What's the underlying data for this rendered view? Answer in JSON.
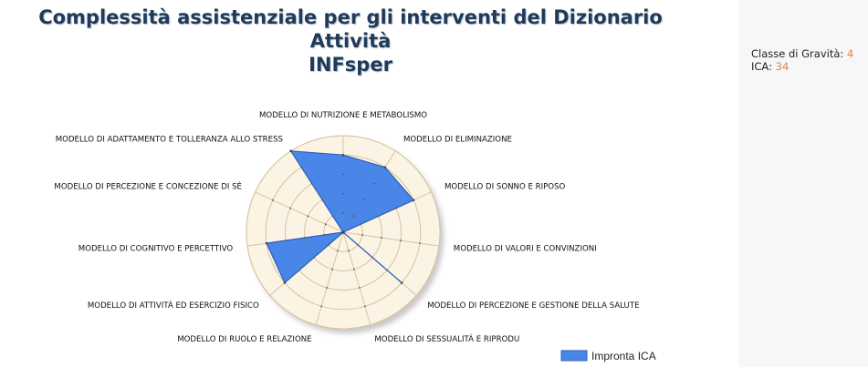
{
  "title_lines": [
    "Complessità assistenziale per gli interventi del Dizionario Attività",
    "INFsper"
  ],
  "info": {
    "gravity_label": "Classe di Gravità:",
    "gravity_value": "4",
    "ica_label": "ICA:",
    "ica_value": "34"
  },
  "colors": {
    "series_fill": "#4a86e8",
    "series_stroke": "#2c5fb8",
    "plot_bg": "#fbf3e3",
    "grid": "#d8c4a0"
  },
  "chart_data": {
    "type": "radar",
    "axes": [
      "MODELLO DI NUTRIZIONE E METABOLISMO",
      "MODELLO DI ELIMINAZIONE",
      "MODELLO DI SONNO E RIPOSO",
      "MODELLO DI VALORI E CONVINZIONI",
      "MODELLO DI PERCEZIONE E GESTIONE DELLA SALUTE",
      "MODELLO DI SESSUALITÀ E  RIPRODU",
      "MODELLO DI RUOLO E RELAZIONE",
      "MODELLO DI ATTIVITÀ ED ESERCIZIO FISICO",
      "MODELLO DI COGNITIVO E PERCETTIVO",
      "MODELLO DI PERCEZIONE E CONCEZIONE DI SÉ",
      "MODELLO DI ADATTAMENTO E TOLLERANZA ALLO STRESS"
    ],
    "series": [
      {
        "name": "Impronta ICA",
        "values": [
          4,
          4,
          4,
          0,
          4,
          0,
          0,
          4,
          4,
          0,
          5
        ]
      }
    ],
    "rlim": [
      0,
      5
    ],
    "grid": true,
    "legend": "bottom-right"
  }
}
